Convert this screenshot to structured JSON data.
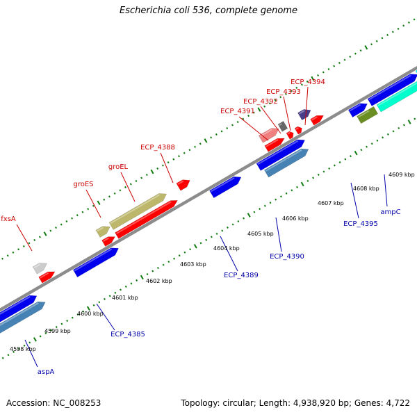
{
  "title": "Escherichia coli 536, complete genome",
  "footer": {
    "accession": "Accession: NC_008253",
    "summary": "Topology: circular; Length: 4,938,920 bp; Genes: 4,722"
  },
  "colors": {
    "backbone": "#8c8c8c",
    "ticks": "#0d7a0d",
    "label_top": "#cc0000",
    "label_bottom": "#0000aa",
    "gene_red": "#ff0000",
    "gene_blue": "#0000ee",
    "gene_steel": "#4682b4",
    "gene_khaki": "#bdb76b",
    "gene_pink": "#f08080",
    "gene_gray": "#cccccc",
    "gene_darkgray": "#666666",
    "gene_slate": "#483d8b",
    "gene_olive": "#6b8e23",
    "gene_aqua": "#00ffcc",
    "gene_cyan": "#00ffff"
  },
  "kbp_ticks": [
    "4598 kbp",
    "4599 kbp",
    "4600 kbp",
    "4601 kbp",
    "4602 kbp",
    "4603 kbp",
    "4604 kbp",
    "4605 kbp",
    "4606 kbp",
    "4607 kbp",
    "4608 kbp",
    "4609 kbp"
  ],
  "genes_top": [
    {
      "label": "fxsA"
    },
    {
      "label": "groES"
    },
    {
      "label": "groEL"
    },
    {
      "label": "ECP_4388"
    },
    {
      "label": "ECP_4391"
    },
    {
      "label": "ECP_4392"
    },
    {
      "label": "ECP_4393"
    },
    {
      "label": "ECP_4394"
    }
  ],
  "genes_bottom": [
    {
      "label": "aspA"
    },
    {
      "label": "ECP_4385"
    },
    {
      "label": "ECP_4389"
    },
    {
      "label": "ECP_4390"
    },
    {
      "label": "ECP_4395"
    },
    {
      "label": "ampC"
    }
  ]
}
